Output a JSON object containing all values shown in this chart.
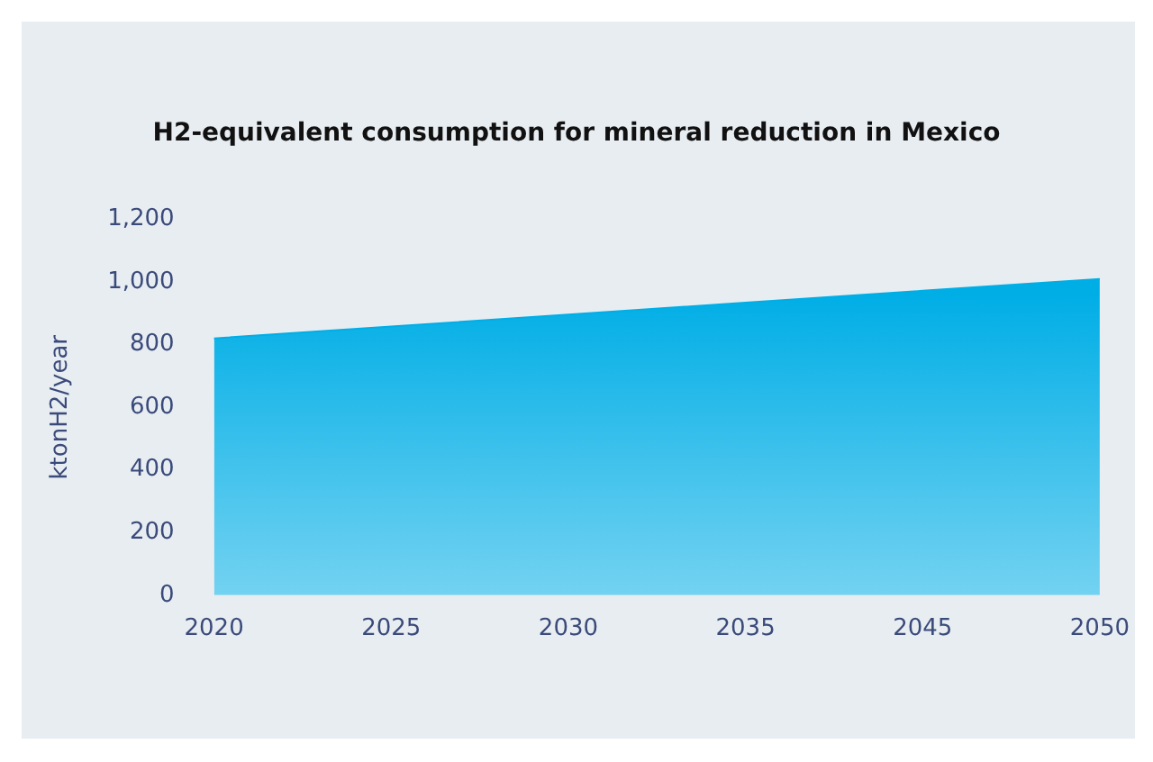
{
  "chart_data": {
    "type": "area",
    "title": "H2-equivalent consumption for mineral reduction in Mexico",
    "ylabel": "ktonH2/year",
    "categories": [
      "2020",
      "2025",
      "2030",
      "2035",
      "2045",
      "2050"
    ],
    "series": [
      {
        "color": "#00aee6",
        "values": [
          820,
          858,
          896,
          934,
          972,
          1010
        ]
      }
    ],
    "ylim": [
      0,
      1200
    ],
    "yticks": [
      0,
      200,
      400,
      600,
      800,
      {
        "value": 1000,
        "label": "1,000"
      },
      {
        "value": 1200,
        "label": "1,200"
      }
    ],
    "grid": false,
    "legend": false
  }
}
